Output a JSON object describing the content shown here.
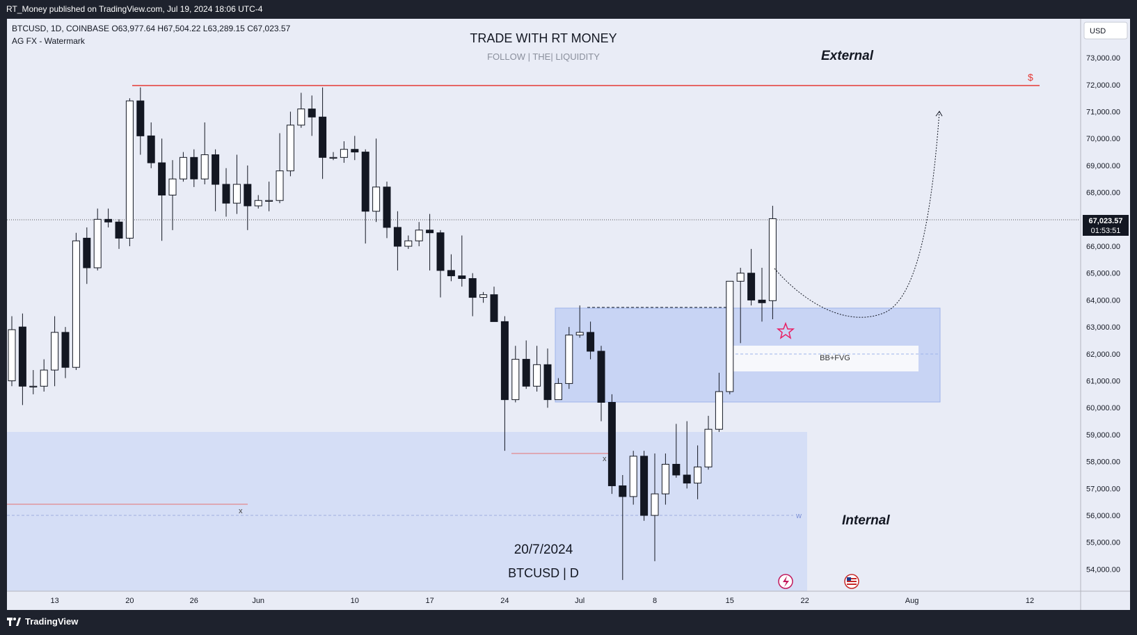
{
  "publisher_line": "RT_Money published on TradingView.com, Jul 19, 2024 18:06 UTC-4",
  "symbol_info": "BTCUSD, 1D, COINBASE  O63,977.64  H67,504.22  L63,289.15  C67,023.57",
  "indicator": "AG FX - Watermark",
  "watermark": {
    "title": "TRADE WITH RT MONEY",
    "subtitle": "FOLLOW  |  THE|  LIQUIDITY"
  },
  "currency": "USD",
  "annotations": {
    "external": "External",
    "internal": "Internal",
    "dollar": "$",
    "bb_fvg": "BB+FVG",
    "x1": "x",
    "x2": "x",
    "w": "w",
    "date": "20/7/2024",
    "pair": "BTCUSD | D"
  },
  "price_badge": {
    "price": "67,023.57",
    "countdown": "01:53:51"
  },
  "colors": {
    "up_fill": "#ffffff",
    "down_fill": "#131722",
    "wick": "#131722",
    "resistance": "#e53935",
    "zone": "#bfd0f5",
    "lower_zone": "#d5def6",
    "marker": "#e91e63"
  },
  "footer": {
    "brand": "TradingView"
  },
  "chart_data": {
    "type": "candlestick",
    "x_tick_labels": [
      "13",
      "20",
      "26",
      "Jun",
      "10",
      "17",
      "24",
      "Jul",
      "8",
      "15",
      "22",
      "Aug",
      "12"
    ],
    "y_tick_labels": [
      "73,000.00",
      "72,000.00",
      "71,000.00",
      "70,000.00",
      "69,000.00",
      "68,000.00",
      "66,000.00",
      "65,000.00",
      "64,000.00",
      "63,000.00",
      "62,000.00",
      "61,000.00",
      "60,000.00",
      "59,000.00",
      "58,000.00",
      "57,000.00",
      "56,000.00",
      "55,000.00",
      "54,000.00"
    ],
    "ylim": [
      53500,
      73700
    ],
    "levels": {
      "resistance": 71970,
      "current_price": 67023.57
    },
    "candles": [
      {
        "date": "2024-05-09",
        "o": 61000,
        "h": 63400,
        "l": 60800,
        "c": 62900
      },
      {
        "date": "2024-05-10",
        "o": 63000,
        "h": 63500,
        "l": 60100,
        "c": 60800
      },
      {
        "date": "2024-05-11",
        "o": 60800,
        "h": 61400,
        "l": 60500,
        "c": 60800
      },
      {
        "date": "2024-05-12",
        "o": 60800,
        "h": 61800,
        "l": 60600,
        "c": 61400
      },
      {
        "date": "2024-05-13",
        "o": 61400,
        "h": 63400,
        "l": 60800,
        "c": 62800
      },
      {
        "date": "2024-05-14",
        "o": 62800,
        "h": 63000,
        "l": 61100,
        "c": 61500
      },
      {
        "date": "2024-05-15",
        "o": 61500,
        "h": 66500,
        "l": 61400,
        "c": 66200
      },
      {
        "date": "2024-05-16",
        "o": 66300,
        "h": 66700,
        "l": 64600,
        "c": 65200
      },
      {
        "date": "2024-05-17",
        "o": 65200,
        "h": 67400,
        "l": 65100,
        "c": 67000
      },
      {
        "date": "2024-05-18",
        "o": 67000,
        "h": 67400,
        "l": 66700,
        "c": 66900
      },
      {
        "date": "2024-05-19",
        "o": 66900,
        "h": 67000,
        "l": 65900,
        "c": 66300
      },
      {
        "date": "2024-05-20",
        "o": 66300,
        "h": 71500,
        "l": 66000,
        "c": 71400
      },
      {
        "date": "2024-05-21",
        "o": 71400,
        "h": 71900,
        "l": 69400,
        "c": 70100
      },
      {
        "date": "2024-05-22",
        "o": 70100,
        "h": 70600,
        "l": 68900,
        "c": 69100
      },
      {
        "date": "2024-05-23",
        "o": 69100,
        "h": 70000,
        "l": 66200,
        "c": 67900
      },
      {
        "date": "2024-05-24",
        "o": 67900,
        "h": 69200,
        "l": 66600,
        "c": 68500
      },
      {
        "date": "2024-05-25",
        "o": 68500,
        "h": 69500,
        "l": 68400,
        "c": 69300
      },
      {
        "date": "2024-05-26",
        "o": 69300,
        "h": 69600,
        "l": 68200,
        "c": 68500
      },
      {
        "date": "2024-05-27",
        "o": 68500,
        "h": 70600,
        "l": 68300,
        "c": 69400
      },
      {
        "date": "2024-05-28",
        "o": 69400,
        "h": 69600,
        "l": 67300,
        "c": 68300
      },
      {
        "date": "2024-05-29",
        "o": 68300,
        "h": 68900,
        "l": 67100,
        "c": 67600
      },
      {
        "date": "2024-05-30",
        "o": 67600,
        "h": 69400,
        "l": 67200,
        "c": 68300
      },
      {
        "date": "2024-05-31",
        "o": 68300,
        "h": 69000,
        "l": 66600,
        "c": 67500
      },
      {
        "date": "2024-06-01",
        "o": 67500,
        "h": 67900,
        "l": 67400,
        "c": 67700
      },
      {
        "date": "2024-06-02",
        "o": 67700,
        "h": 68400,
        "l": 67300,
        "c": 67700
      },
      {
        "date": "2024-06-03",
        "o": 67700,
        "h": 70200,
        "l": 67600,
        "c": 68800
      },
      {
        "date": "2024-06-04",
        "o": 68800,
        "h": 71000,
        "l": 68600,
        "c": 70500
      },
      {
        "date": "2024-06-05",
        "o": 70500,
        "h": 71700,
        "l": 70400,
        "c": 71100
      },
      {
        "date": "2024-06-06",
        "o": 71100,
        "h": 71600,
        "l": 70100,
        "c": 70800
      },
      {
        "date": "2024-06-07",
        "o": 70800,
        "h": 71900,
        "l": 68500,
        "c": 69300
      },
      {
        "date": "2024-06-08",
        "o": 69300,
        "h": 69500,
        "l": 69200,
        "c": 69300
      },
      {
        "date": "2024-06-09",
        "o": 69300,
        "h": 69900,
        "l": 69100,
        "c": 69600
      },
      {
        "date": "2024-06-10",
        "o": 69600,
        "h": 70100,
        "l": 69200,
        "c": 69500
      },
      {
        "date": "2024-06-11",
        "o": 69500,
        "h": 69600,
        "l": 66100,
        "c": 67300
      },
      {
        "date": "2024-06-12",
        "o": 67300,
        "h": 70000,
        "l": 66900,
        "c": 68200
      },
      {
        "date": "2024-06-13",
        "o": 68200,
        "h": 68400,
        "l": 66300,
        "c": 66700
      },
      {
        "date": "2024-06-14",
        "o": 66700,
        "h": 67300,
        "l": 65100,
        "c": 66000
      },
      {
        "date": "2024-06-15",
        "o": 66000,
        "h": 66400,
        "l": 65900,
        "c": 66200
      },
      {
        "date": "2024-06-16",
        "o": 66200,
        "h": 66900,
        "l": 66000,
        "c": 66600
      },
      {
        "date": "2024-06-17",
        "o": 66600,
        "h": 67200,
        "l": 65100,
        "c": 66500
      },
      {
        "date": "2024-06-18",
        "o": 66500,
        "h": 66600,
        "l": 64100,
        "c": 65100
      },
      {
        "date": "2024-06-19",
        "o": 65100,
        "h": 65700,
        "l": 64700,
        "c": 64900
      },
      {
        "date": "2024-06-20",
        "o": 64900,
        "h": 66400,
        "l": 64500,
        "c": 64800
      },
      {
        "date": "2024-06-21",
        "o": 64800,
        "h": 65000,
        "l": 63400,
        "c": 64100
      },
      {
        "date": "2024-06-22",
        "o": 64100,
        "h": 64300,
        "l": 63900,
        "c": 64200
      },
      {
        "date": "2024-06-23",
        "o": 64200,
        "h": 64500,
        "l": 63200,
        "c": 63200
      },
      {
        "date": "2024-06-24",
        "o": 63200,
        "h": 63400,
        "l": 58400,
        "c": 60300
      },
      {
        "date": "2024-06-25",
        "o": 60300,
        "h": 62300,
        "l": 60200,
        "c": 61800
      },
      {
        "date": "2024-06-26",
        "o": 61800,
        "h": 62500,
        "l": 60700,
        "c": 60800
      },
      {
        "date": "2024-06-27",
        "o": 60800,
        "h": 62300,
        "l": 60600,
        "c": 61600
      },
      {
        "date": "2024-06-28",
        "o": 61600,
        "h": 62200,
        "l": 60000,
        "c": 60300
      },
      {
        "date": "2024-06-29",
        "o": 60300,
        "h": 61100,
        "l": 60300,
        "c": 60900
      },
      {
        "date": "2024-06-30",
        "o": 60900,
        "h": 63000,
        "l": 60700,
        "c": 62700
      },
      {
        "date": "2024-07-01",
        "o": 62700,
        "h": 63800,
        "l": 62600,
        "c": 62800
      },
      {
        "date": "2024-07-02",
        "o": 62800,
        "h": 63200,
        "l": 61800,
        "c": 62100
      },
      {
        "date": "2024-07-03",
        "o": 62100,
        "h": 62300,
        "l": 59500,
        "c": 60200
      },
      {
        "date": "2024-07-04",
        "o": 60200,
        "h": 60500,
        "l": 56800,
        "c": 57100
      },
      {
        "date": "2024-07-05",
        "o": 57100,
        "h": 57500,
        "l": 53600,
        "c": 56700
      },
      {
        "date": "2024-07-06",
        "o": 56700,
        "h": 58400,
        "l": 56400,
        "c": 58200
      },
      {
        "date": "2024-07-07",
        "o": 58200,
        "h": 58400,
        "l": 55800,
        "c": 56000
      },
      {
        "date": "2024-07-08",
        "o": 56000,
        "h": 58300,
        "l": 54300,
        "c": 56800
      },
      {
        "date": "2024-07-09",
        "o": 56800,
        "h": 58300,
        "l": 56400,
        "c": 57900
      },
      {
        "date": "2024-07-10",
        "o": 57900,
        "h": 59400,
        "l": 57400,
        "c": 57500
      },
      {
        "date": "2024-07-11",
        "o": 57500,
        "h": 59500,
        "l": 57000,
        "c": 57200
      },
      {
        "date": "2024-07-12",
        "o": 57200,
        "h": 58600,
        "l": 56600,
        "c": 57800
      },
      {
        "date": "2024-07-13",
        "o": 57800,
        "h": 59700,
        "l": 57700,
        "c": 59200
      },
      {
        "date": "2024-07-14",
        "o": 59200,
        "h": 61300,
        "l": 59100,
        "c": 60600
      },
      {
        "date": "2024-07-15",
        "o": 60600,
        "h": 64700,
        "l": 60500,
        "c": 64700
      },
      {
        "date": "2024-07-16",
        "o": 64700,
        "h": 65200,
        "l": 62400,
        "c": 65000
      },
      {
        "date": "2024-07-17",
        "o": 65000,
        "h": 65900,
        "l": 63800,
        "c": 64000
      },
      {
        "date": "2024-07-18",
        "o": 64000,
        "h": 65200,
        "l": 63200,
        "c": 63900
      },
      {
        "date": "2024-07-19",
        "o": 63977.64,
        "h": 67504.22,
        "l": 63289.15,
        "c": 67023.57
      }
    ]
  }
}
